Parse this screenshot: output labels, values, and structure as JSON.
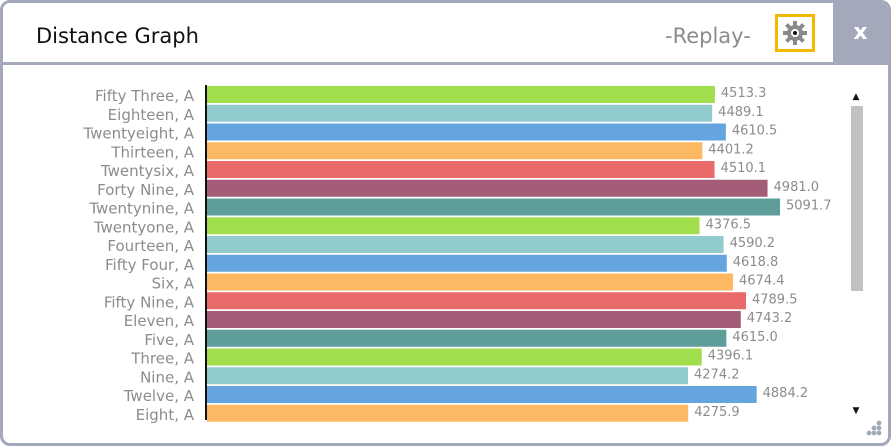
{
  "window": {
    "title": "Distance Graph",
    "mode": "-Replay-",
    "close_label": "x",
    "settings_icon": "gear-icon",
    "resize_icon": "resize-grip-icon",
    "scroll_up_icon": "triangle-up-icon",
    "scroll_down_icon": "triangle-down-icon",
    "colors": {
      "border": "#a3a8bb",
      "settings_highlight": "#f5b800",
      "label_text": "#8c8c8c"
    }
  },
  "chart_data": {
    "type": "bar",
    "orientation": "horizontal",
    "title": "",
    "xlabel": "",
    "ylabel": "",
    "categories": [
      "Fifty Three, A",
      "Eighteen, A",
      "Twentyeight, A",
      "Thirteen, A",
      "Twentysix, A",
      "Forty Nine, A",
      "Twentynine, A",
      "Twentyone, A",
      "Fourteen, A",
      "Fifty Four, A",
      "Six, A",
      "Fifty Nine, A",
      "Eleven, A",
      "Five, A",
      "Three, A",
      "Nine, A",
      "Twelve, A",
      "Eight, A"
    ],
    "values": [
      4513.3,
      4489.1,
      4610.5,
      4401.2,
      4510.1,
      4981.0,
      5091.7,
      4376.5,
      4590.2,
      4618.8,
      4674.4,
      4789.5,
      4743.2,
      4615.0,
      4396.1,
      4274.2,
      4884.2,
      4275.9
    ],
    "value_labels": [
      "4513.3",
      "4489.1",
      "4610.5",
      "4401.2",
      "4510.1",
      "4981.0",
      "5091.7",
      "4376.5",
      "4590.2",
      "4618.8",
      "4674.4",
      "4789.5",
      "4743.2",
      "4615.0",
      "4396.1",
      "4274.2",
      "4884.2",
      "4275.9"
    ],
    "colors": [
      "#a0de4e",
      "#92cbce",
      "#64a5df",
      "#fdb864",
      "#e86a69",
      "#a45d78",
      "#5e9d99"
    ],
    "xlim": [
      0,
      5200
    ],
    "grid": false,
    "legend": "none"
  }
}
